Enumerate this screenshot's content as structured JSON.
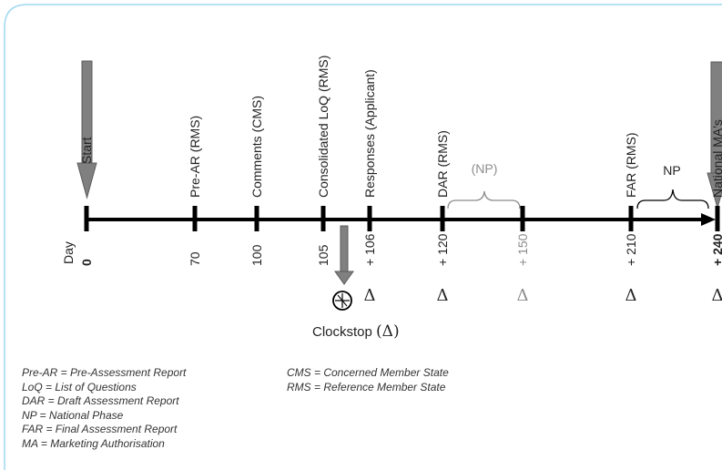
{
  "timeline": {
    "day_label": "Day",
    "milestones": [
      {
        "day": "0",
        "label": "Start",
        "delta": "",
        "grey": false,
        "bold": true
      },
      {
        "day": "70",
        "label": "Pre-AR (RMS)",
        "delta": "",
        "grey": false,
        "bold": false
      },
      {
        "day": "100",
        "label": "Comments (CMS)",
        "delta": "",
        "grey": false,
        "bold": false
      },
      {
        "day": "105",
        "label": "Consolidated LoQ (RMS)",
        "delta": "",
        "grey": false,
        "bold": false
      },
      {
        "day": "106",
        "label": "Responses (Applicant)",
        "delta": "Δ",
        "grey": false,
        "bold": false
      },
      {
        "day": "120",
        "label": "DAR (RMS)",
        "delta": "Δ",
        "grey": false,
        "bold": false
      },
      {
        "day": "150",
        "label": "",
        "delta": "Δ",
        "grey": true,
        "bold": false
      },
      {
        "day": "210",
        "label": "FAR (RMS)",
        "delta": "Δ",
        "grey": false,
        "bold": false
      },
      {
        "day": "240",
        "label": "National MA's",
        "delta": "Δ",
        "grey": false,
        "bold": true
      }
    ],
    "phases": [
      {
        "label": "(NP)",
        "grey": true
      },
      {
        "label": "NP",
        "grey": false
      }
    ],
    "clockstop": {
      "label": "Clockstop",
      "symbol": "(Δ)"
    }
  },
  "legend": {
    "left": [
      "Pre-AR = Pre-Assessment Report",
      "LoQ = List of Questions",
      "DAR = Draft Assessment Report",
      "NP = National Phase",
      "FAR = Final Assessment Report",
      "MA = Marketing Authorisation"
    ],
    "right": [
      "CMS = Concerned Member State",
      "RMS = Reference Member State"
    ]
  },
  "colors": {
    "frame": "#9fd8ef",
    "axis": "#000000",
    "arrow": "#808080",
    "grey_text": "#8c8c8c"
  }
}
